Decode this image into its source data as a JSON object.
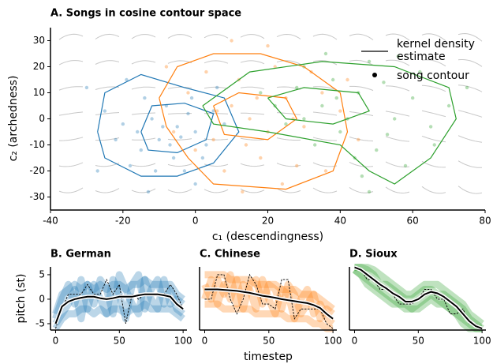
{
  "chart_data": [
    {
      "type": "scatter",
      "title": "A. Songs in cosine contour space",
      "xlabel": "c₁ (descendingness)",
      "ylabel": "c₂ (archedness)",
      "xlim": [
        -40,
        80
      ],
      "ylim": [
        -35,
        35
      ],
      "xticks": [
        -40,
        -20,
        0,
        20,
        40,
        60,
        80
      ],
      "yticks": [
        -30,
        -20,
        -10,
        0,
        10,
        20,
        30
      ],
      "legend": [
        "kernel density estimate",
        "song contour"
      ],
      "series": [
        {
          "color": "#1f77b4",
          "x": [
            -5,
            -10,
            -2,
            -15,
            -8,
            0,
            -20,
            -12,
            -6,
            3,
            -18,
            -25,
            -3,
            5,
            -9,
            -14,
            2,
            -22,
            -7,
            -1,
            -30,
            -11,
            8,
            -4,
            -16,
            -19,
            0,
            -27,
            6,
            -13
          ],
          "y": [
            -3,
            -8,
            2,
            -12,
            5,
            -5,
            -2,
            0,
            -15,
            -10,
            -18,
            3,
            -20,
            3,
            -3,
            8,
            -15,
            -8,
            -10,
            8,
            12,
            -20,
            -2,
            -7,
            -5,
            15,
            -25,
            -20,
            12,
            -28
          ],
          "contours": [
            {
              "x": [
                -27,
                -25,
                -15,
                -3,
                8,
                12,
                5,
                -5,
                -15,
                -25,
                -27
              ],
              "y": [
                -5,
                10,
                17,
                12,
                8,
                -5,
                -17,
                -22,
                -22,
                -15,
                -5
              ]
            },
            {
              "x": [
                -15,
                -12,
                -3,
                5,
                3,
                -5,
                -13,
                -15
              ],
              "y": [
                -5,
                5,
                6,
                2,
                -8,
                -13,
                -12,
                -5
              ]
            }
          ]
        },
        {
          "color": "#ff7f0e",
          "x": [
            15,
            10,
            20,
            25,
            5,
            30,
            12,
            18,
            35,
            8,
            22,
            -2,
            28,
            40,
            14,
            3,
            32,
            17,
            -6,
            24,
            10,
            45,
            0,
            36,
            20,
            6,
            27,
            13,
            42,
            -8
          ],
          "y": [
            0,
            5,
            -5,
            8,
            -8,
            -3,
            15,
            -15,
            10,
            -20,
            20,
            10,
            -18,
            3,
            -10,
            18,
            18,
            8,
            -5,
            -25,
            30,
            -8,
            -12,
            -20,
            28,
            3,
            0,
            -28,
            15,
            20
          ],
          "contours": [
            {
              "x": [
                -10,
                -5,
                5,
                18,
                30,
                40,
                42,
                38,
                25,
                5,
                -2,
                -8,
                -10
              ],
              "y": [
                8,
                20,
                25,
                25,
                20,
                10,
                -5,
                -20,
                -27,
                -25,
                -15,
                -3,
                8
              ]
            },
            {
              "x": [
                5,
                12,
                25,
                28,
                20,
                8,
                5
              ],
              "y": [
                5,
                10,
                8,
                0,
                -8,
                -6,
                5
              ]
            }
          ]
        },
        {
          "color": "#2ca02c",
          "x": [
            35,
            45,
            28,
            55,
            40,
            30,
            50,
            60,
            22,
            38,
            48,
            65,
            33,
            52,
            42,
            58,
            25,
            70,
            46,
            36,
            62,
            18,
            53,
            44,
            75,
            30,
            56,
            66,
            39,
            48
          ],
          "y": [
            5,
            10,
            12,
            0,
            -5,
            20,
            -12,
            8,
            5,
            15,
            22,
            -3,
            -10,
            14,
            0,
            -18,
            -2,
            5,
            -22,
            25,
            18,
            10,
            -6,
            -15,
            12,
            0,
            24,
            -10,
            8,
            -28
          ],
          "contours": [
            {
              "x": [
                2,
                15,
                35,
                55,
                70,
                72,
                65,
                55,
                48,
                40,
                20,
                5,
                2
              ],
              "y": [
                5,
                18,
                22,
                20,
                12,
                0,
                -15,
                -25,
                -20,
                -10,
                -5,
                -2,
                5
              ]
            },
            {
              "x": [
                20,
                30,
                45,
                48,
                38,
                25,
                20
              ],
              "y": [
                8,
                12,
                10,
                3,
                -2,
                0,
                8
              ]
            }
          ]
        }
      ]
    },
    {
      "type": "line",
      "title": "B. German",
      "ylabel": "pitch (st)",
      "xlim": [
        -4,
        103
      ],
      "ylim": [
        -6.3,
        6.6
      ],
      "xticks": [
        0,
        50,
        100
      ],
      "yticks": [
        -5,
        0,
        5
      ],
      "x": [
        0,
        5,
        10,
        15,
        20,
        25,
        30,
        35,
        40,
        45,
        50,
        55,
        60,
        65,
        70,
        75,
        80,
        85,
        90,
        95,
        100
      ],
      "series": [
        {
          "role": "trace",
          "color": "#1f77b4",
          "values": [
            -3,
            1,
            2,
            3,
            2,
            3,
            2,
            3,
            2,
            3,
            3,
            2,
            3,
            3,
            4,
            3,
            3,
            3,
            3,
            1,
            0
          ]
        },
        {
          "role": "trace",
          "color": "#1f77b4",
          "values": [
            -6,
            -4,
            -3,
            -3,
            -2,
            -2,
            -3,
            -2,
            -3,
            -2,
            -2,
            -3,
            -2,
            -2,
            -1,
            -2,
            -2,
            -2,
            -2,
            -3,
            -4
          ]
        },
        {
          "role": "trace",
          "color": "#1f77b4",
          "values": [
            -4,
            0,
            3,
            -1,
            4,
            -2,
            3,
            0,
            -3,
            4,
            1,
            -4,
            3,
            5,
            -2,
            2,
            4,
            -1,
            2,
            -2,
            -3
          ]
        },
        {
          "role": "trace",
          "color": "#1f77b4",
          "values": [
            -5,
            -3,
            -1,
            2,
            -4,
            3,
            -1,
            4,
            2,
            -3,
            5,
            2,
            -1,
            -3,
            4,
            0,
            -2,
            4,
            -1,
            0,
            -1
          ]
        },
        {
          "role": "example",
          "color": "#000000",
          "values": [
            -6,
            -2,
            1,
            1,
            1,
            3,
            1,
            1,
            4,
            1,
            3,
            -5,
            1,
            0,
            1,
            1,
            1,
            1,
            3,
            1,
            -2
          ]
        },
        {
          "role": "mean",
          "color": "#000000",
          "values": [
            -5,
            -1.5,
            -0.5,
            0,
            0.3,
            0.5,
            0.5,
            0.2,
            0,
            0.2,
            0.5,
            0.5,
            0.5,
            0.8,
            1,
            1,
            1,
            0.8,
            0.5,
            -1,
            -2
          ]
        }
      ]
    },
    {
      "type": "line",
      "title": "C. Chinese",
      "xlabel": "timestep",
      "xlim": [
        -4,
        103
      ],
      "ylim": [
        -6.3,
        6.6
      ],
      "xticks": [
        0,
        50,
        100
      ],
      "x": [
        0,
        5,
        10,
        15,
        20,
        25,
        30,
        35,
        40,
        45,
        50,
        55,
        60,
        65,
        70,
        75,
        80,
        85,
        90,
        95,
        100
      ],
      "series": [
        {
          "role": "trace",
          "color": "#ff7f0e",
          "values": [
            5,
            5,
            5,
            5,
            4,
            4,
            4,
            4,
            3,
            3,
            3,
            3,
            2,
            2,
            2,
            1,
            1,
            1,
            0,
            -1,
            -2
          ]
        },
        {
          "role": "trace",
          "color": "#ff7f0e",
          "values": [
            -1,
            -1,
            -1,
            -2,
            -2,
            -2,
            -2,
            -2,
            -3,
            -3,
            -3,
            -3,
            -3,
            -4,
            -4,
            -4,
            -4,
            -5,
            -5,
            -6,
            -6
          ]
        },
        {
          "role": "trace",
          "color": "#ff7f0e",
          "values": [
            3,
            0,
            4,
            1,
            5,
            -1,
            3,
            2,
            -2,
            4,
            0,
            -3,
            2,
            1,
            -4,
            0,
            2,
            -3,
            -1,
            -4,
            -5
          ]
        },
        {
          "role": "trace",
          "color": "#ff7f0e",
          "values": [
            0,
            4,
            -1,
            3,
            0,
            4,
            -2,
            3,
            4,
            -1,
            3,
            2,
            -2,
            3,
            1,
            -3,
            -1,
            1,
            -4,
            -2,
            -3
          ]
        },
        {
          "role": "example",
          "color": "#000000",
          "values": [
            0,
            0,
            5,
            5,
            0,
            -3,
            0,
            5,
            3,
            -1,
            -1,
            -2,
            4,
            4,
            -4,
            -2,
            -2,
            -2,
            -2,
            -5,
            -6
          ]
        },
        {
          "role": "mean",
          "color": "#000000",
          "values": [
            2,
            2,
            2,
            1.9,
            1.8,
            1.7,
            1.5,
            1.3,
            1,
            0.7,
            0.5,
            0.3,
            0,
            -0.2,
            -0.4,
            -0.6,
            -0.8,
            -1.2,
            -1.8,
            -3,
            -4
          ]
        }
      ]
    },
    {
      "type": "line",
      "title": "D. Sioux",
      "xlim": [
        -4,
        103
      ],
      "ylim": [
        -6.3,
        6.6
      ],
      "xticks": [
        0,
        50,
        100
      ],
      "x": [
        0,
        5,
        10,
        15,
        20,
        25,
        30,
        35,
        40,
        45,
        50,
        55,
        60,
        65,
        70,
        75,
        80,
        85,
        90,
        95,
        100
      ],
      "series": [
        {
          "role": "trace",
          "color": "#2ca02c",
          "values": [
            6.5,
            6.5,
            6.5,
            6,
            5,
            4,
            3,
            2,
            1,
            1,
            2,
            3,
            3,
            3,
            2,
            1,
            0,
            -1,
            -3,
            -4,
            -5
          ]
        },
        {
          "role": "trace",
          "color": "#2ca02c",
          "values": [
            6,
            5,
            3,
            2,
            1,
            0,
            -1,
            -1,
            -2,
            -2,
            -2,
            -1,
            0,
            -1,
            -1,
            -2,
            -3,
            -5,
            -6,
            -6,
            -6
          ]
        },
        {
          "role": "trace",
          "color": "#2ca02c",
          "values": [
            6.5,
            6.5,
            6,
            5,
            3,
            3,
            2,
            1,
            0,
            0,
            1,
            2,
            2,
            1,
            1,
            0,
            -1,
            -2,
            -4,
            -5,
            -6
          ]
        },
        {
          "role": "trace",
          "color": "#2ca02c",
          "values": [
            6,
            5,
            4,
            3,
            2,
            1,
            0,
            -1,
            -1,
            -2,
            -1,
            0,
            1,
            0,
            -1,
            -2,
            -3,
            -4,
            -5,
            -6,
            -6
          ]
        },
        {
          "role": "example",
          "color": "#000000",
          "values": [
            6.5,
            6,
            4,
            4,
            2,
            2,
            1,
            -1,
            -1,
            -1,
            0,
            2,
            2,
            0,
            0,
            -3,
            -3,
            -2,
            -5,
            -5,
            -6
          ]
        },
        {
          "role": "mean",
          "color": "#000000",
          "values": [
            6.5,
            6,
            5,
            4,
            3,
            2.2,
            1.2,
            0.5,
            -0.5,
            -0.5,
            0,
            1,
            1.5,
            1.2,
            0.5,
            -0.5,
            -1.5,
            -3,
            -4.5,
            -5.5,
            -6
          ]
        }
      ]
    }
  ]
}
